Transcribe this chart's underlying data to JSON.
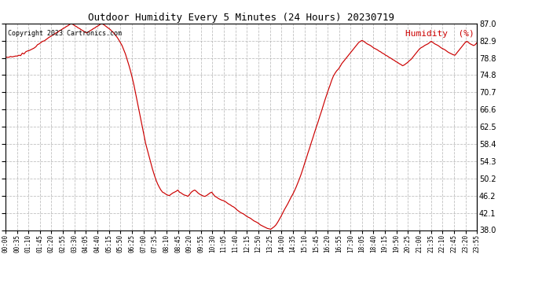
{
  "title": "Outdoor Humidity Every 5 Minutes (24 Hours) 20230719",
  "copyright": "Copyright 2023 Cartronics.com",
  "legend_label": "Humidity  (%)",
  "line_color": "#cc0000",
  "background_color": "#ffffff",
  "grid_color": "#b0b0b0",
  "ylim": [
    38.0,
    87.0
  ],
  "yticks": [
    38.0,
    42.1,
    46.2,
    50.2,
    54.3,
    58.4,
    62.5,
    66.6,
    70.7,
    74.8,
    78.8,
    82.9,
    87.0
  ],
  "xtick_labels": [
    "00:00",
    "00:35",
    "01:10",
    "01:45",
    "02:20",
    "02:55",
    "03:30",
    "04:05",
    "04:40",
    "05:15",
    "05:50",
    "06:25",
    "07:00",
    "07:35",
    "08:10",
    "08:45",
    "09:20",
    "09:55",
    "10:30",
    "11:05",
    "11:40",
    "12:15",
    "12:50",
    "13:25",
    "14:00",
    "14:35",
    "15:10",
    "15:45",
    "16:20",
    "16:55",
    "17:30",
    "18:05",
    "18:40",
    "19:15",
    "19:50",
    "20:25",
    "21:00",
    "21:35",
    "22:10",
    "22:45",
    "23:20",
    "23:55"
  ],
  "humidity_data": [
    79.1,
    79.0,
    79.0,
    79.2,
    79.1,
    79.2,
    79.3,
    79.3,
    79.5,
    79.4,
    80.0,
    79.8,
    80.3,
    80.5,
    80.6,
    80.8,
    81.0,
    81.2,
    81.5,
    82.0,
    82.2,
    82.5,
    82.8,
    82.9,
    83.2,
    83.5,
    83.8,
    84.0,
    84.3,
    84.5,
    84.8,
    85.0,
    85.3,
    85.5,
    85.8,
    86.0,
    86.3,
    86.5,
    86.8,
    87.0,
    86.8,
    86.5,
    86.3,
    86.0,
    85.8,
    85.5,
    85.3,
    85.0,
    84.8,
    85.0,
    85.3,
    85.5,
    85.8,
    86.0,
    86.3,
    86.5,
    86.8,
    87.0,
    86.8,
    86.5,
    86.2,
    85.9,
    85.6,
    85.2,
    84.8,
    84.3,
    83.8,
    83.2,
    82.5,
    81.8,
    80.8,
    79.8,
    78.5,
    77.2,
    75.8,
    74.2,
    72.5,
    70.5,
    68.5,
    66.5,
    64.5,
    62.5,
    60.5,
    58.5,
    57.0,
    55.5,
    54.0,
    52.5,
    51.2,
    50.0,
    49.0,
    48.2,
    47.5,
    47.0,
    46.8,
    46.5,
    46.3,
    46.2,
    46.5,
    46.8,
    47.0,
    47.2,
    47.5,
    47.0,
    46.8,
    46.5,
    46.3,
    46.2,
    46.0,
    46.5,
    47.0,
    47.3,
    47.5,
    47.2,
    46.8,
    46.5,
    46.3,
    46.1,
    46.0,
    46.2,
    46.5,
    46.8,
    47.0,
    46.5,
    46.0,
    45.8,
    45.5,
    45.3,
    45.1,
    45.0,
    44.8,
    44.5,
    44.2,
    44.0,
    43.7,
    43.5,
    43.2,
    42.8,
    42.5,
    42.2,
    42.0,
    41.8,
    41.5,
    41.2,
    41.0,
    40.8,
    40.5,
    40.2,
    40.0,
    39.8,
    39.5,
    39.2,
    39.0,
    38.8,
    38.6,
    38.4,
    38.3,
    38.2,
    38.5,
    38.8,
    39.2,
    39.8,
    40.5,
    41.2,
    42.0,
    42.8,
    43.5,
    44.2,
    45.0,
    45.8,
    46.5,
    47.3,
    48.2,
    49.2,
    50.2,
    51.3,
    52.5,
    53.8,
    55.0,
    56.3,
    57.5,
    58.8,
    60.0,
    61.3,
    62.5,
    63.7,
    65.0,
    66.2,
    67.5,
    68.8,
    70.0,
    71.2,
    72.3,
    73.5,
    74.5,
    75.2,
    75.8,
    76.2,
    76.8,
    77.5,
    78.0,
    78.5,
    79.0,
    79.5,
    80.0,
    80.5,
    81.0,
    81.5,
    82.0,
    82.5,
    82.8,
    83.0,
    82.8,
    82.5,
    82.2,
    82.0,
    81.8,
    81.5,
    81.2,
    81.0,
    80.8,
    80.5,
    80.3,
    80.0,
    79.8,
    79.5,
    79.3,
    79.0,
    78.8,
    78.5,
    78.3,
    78.0,
    77.8,
    77.5,
    77.3,
    77.0,
    77.2,
    77.5,
    77.8,
    78.2,
    78.5,
    79.0,
    79.5,
    80.0,
    80.5,
    81.0,
    81.3,
    81.5,
    81.8,
    82.0,
    82.2,
    82.5,
    82.8,
    82.5,
    82.2,
    82.0,
    81.8,
    81.5,
    81.2,
    81.0,
    80.8,
    80.5,
    80.2,
    80.0,
    79.8,
    79.6,
    79.5,
    80.0,
    80.5,
    81.0,
    81.5,
    82.0,
    82.5,
    82.8,
    82.5,
    82.2,
    82.0,
    81.8,
    82.0,
    82.5
  ]
}
